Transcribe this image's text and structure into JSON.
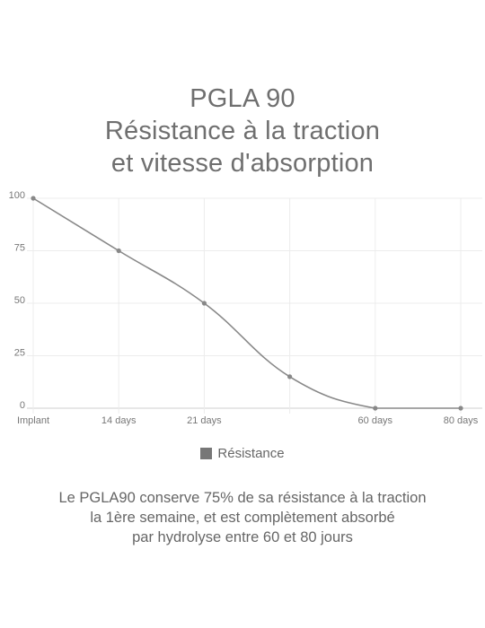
{
  "title": {
    "line1": "PGLA 90",
    "line2": "Résistance à la traction",
    "line3": "et vitesse d'absorption"
  },
  "legend": {
    "label": "Résistance",
    "color": "#777777"
  },
  "caption": {
    "line1": "Le PGLA90 conserve 75% de sa résistance à la traction",
    "line2": "la 1ère semaine, et est complètement absorbé",
    "line3": "par hydrolyse entre 60 et 80 jours"
  },
  "chart_data": {
    "type": "line",
    "categories": [
      "Implant",
      "14 days",
      "21 days",
      "",
      "60 days",
      "80 days"
    ],
    "series": [
      {
        "name": "Résistance",
        "values": [
          100,
          75,
          50,
          15,
          0,
          0
        ],
        "color": "#888888"
      }
    ],
    "ylim": [
      0,
      100
    ],
    "yticks": [
      0,
      25,
      50,
      75,
      100
    ],
    "grid": true,
    "legend_position": "bottom"
  }
}
